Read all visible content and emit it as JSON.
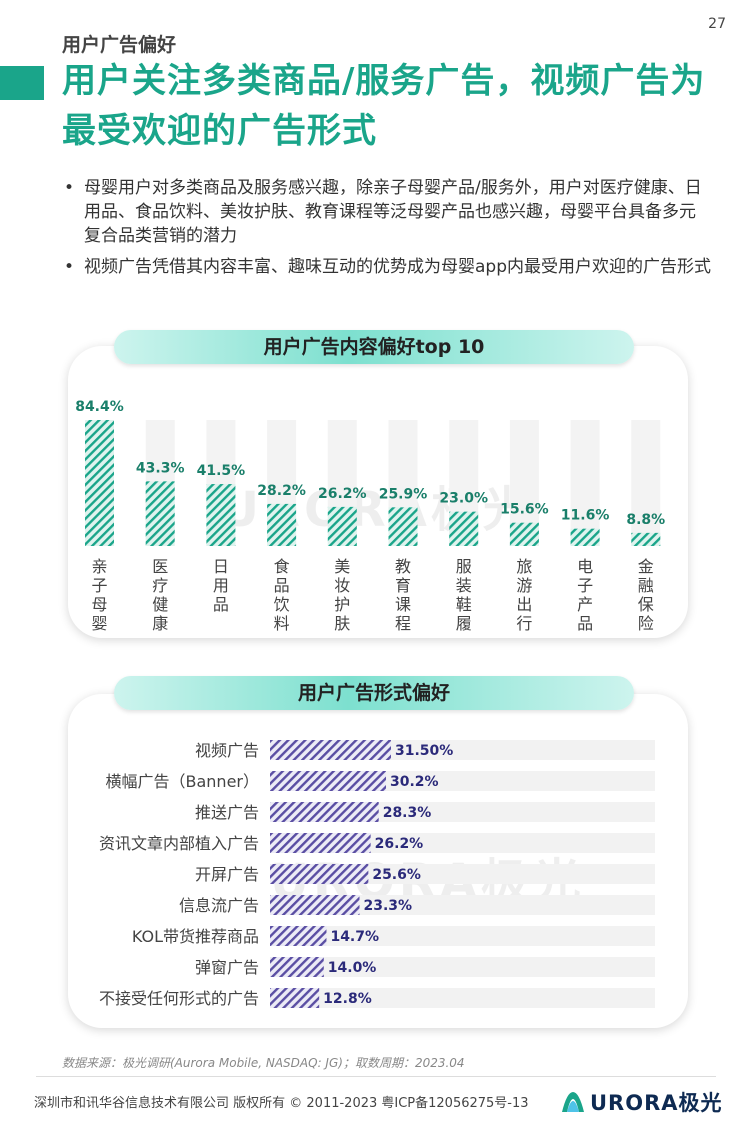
{
  "page_number": "27",
  "section_label": "用户广告偏好",
  "headline": "用户关注多类商品/服务广告，视频广告为最受欢迎的广告形式",
  "bullets": [
    "母婴用户对多类商品及服务感兴趣，除亲子母婴产品/服务外，用户对医疗健康、日用品、食品饮料、美妆护肤、教育课程等泛母婴产品也感兴趣，母婴平台具备多元复合品类营销的潜力",
    "视频广告凭借其内容丰富、趣味互动的优势成为母婴app内最受用户欢迎的广告形式"
  ],
  "watermark": "URORA极光",
  "chart_data": [
    {
      "type": "bar",
      "title": "用户广告内容偏好top 10",
      "categories": [
        "亲子母婴",
        "医疗健康",
        "日用品",
        "食品饮料",
        "美妆护肤",
        "教育课程",
        "服装鞋履",
        "旅游出行",
        "电子产品",
        "金融保险"
      ],
      "values": [
        84.4,
        43.3,
        41.5,
        28.2,
        26.2,
        25.9,
        23.0,
        15.6,
        11.6,
        8.8
      ],
      "value_labels": [
        "84.4%",
        "43.3%",
        "41.5%",
        "28.2%",
        "26.2%",
        "25.9%",
        "23.0%",
        "15.6%",
        "11.6%",
        "8.8%"
      ],
      "ylim": [
        0,
        100
      ],
      "bar_color": "#1aa58a",
      "label_color": "#1a7f6a"
    },
    {
      "type": "bar",
      "orientation": "horizontal",
      "title": "用户广告形式偏好",
      "categories": [
        "视频广告",
        "横幅广告（Banner）",
        "推送广告",
        "资讯文章内部植入广告",
        "开屏广告",
        "信息流广告",
        "KOL带货推荐商品",
        "弹窗广告",
        "不接受任何形式的广告"
      ],
      "values": [
        31.5,
        30.2,
        28.3,
        26.2,
        25.6,
        23.3,
        14.7,
        14.0,
        12.8
      ],
      "value_labels": [
        "31.50%",
        "30.2%",
        "28.3%",
        "26.2%",
        "25.6%",
        "23.3%",
        "14.7%",
        "14.0%",
        "12.8%"
      ],
      "xlim": [
        0,
        100
      ],
      "bar_color": "#5a4ea3",
      "label_color": "#2b2a7a"
    }
  ],
  "source": "数据来源：极光调研(Aurora Mobile, NASDAQ: JG)；取数周期：2023.04",
  "footer": "深圳市和讯华谷信息技术有限公司 版权所有 © 2011-2023 粤ICP备12056275号-13",
  "logo_text": "URORA极光",
  "logo_icon": "aurora-logo-icon"
}
